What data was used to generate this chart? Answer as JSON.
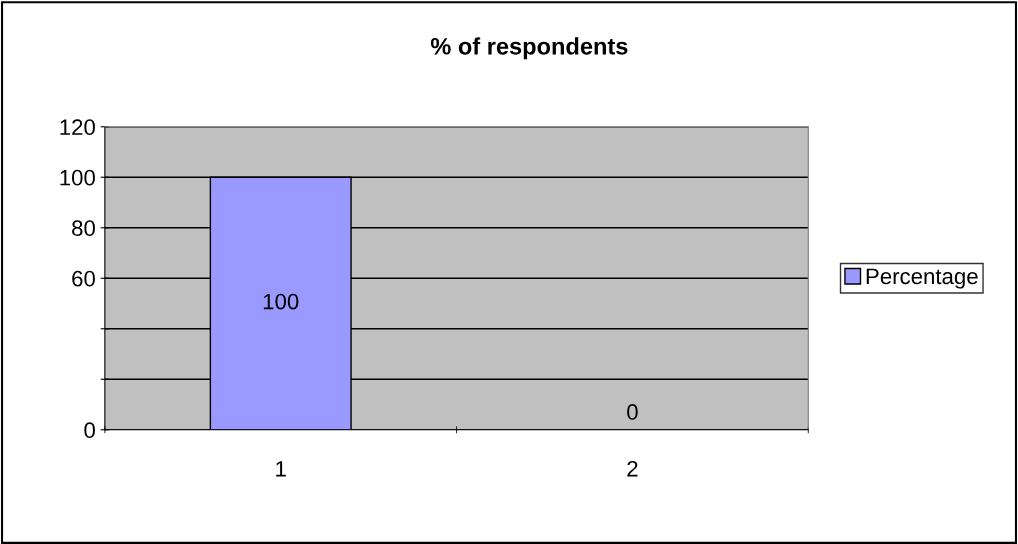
{
  "chart_data": {
    "type": "bar",
    "title": "% of respondents",
    "categories": [
      "1",
      "2"
    ],
    "series": [
      {
        "name": "Percentage",
        "color": "#9999ff",
        "values": [
          100,
          0
        ]
      }
    ],
    "ylim": [
      0,
      120
    ],
    "yticks": [
      0,
      {
        "value": 20,
        "label": null
      },
      {
        "value": 40,
        "label": null
      },
      60,
      80,
      100,
      120
    ],
    "grid": "y",
    "legend": "right",
    "data_labels": true
  }
}
